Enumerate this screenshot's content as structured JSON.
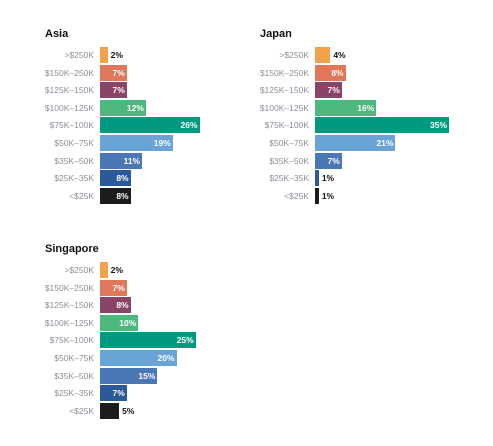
{
  "chart_data": [
    {
      "type": "bar",
      "orientation": "horizontal",
      "title": "Asia",
      "categories": [
        ">$250K",
        "$150K–250K",
        "$125K–150K",
        "$100K–125K",
        "$75K–100K",
        "$50K–75K",
        "$35K–50K",
        "$25K–35K",
        "<$25K"
      ],
      "values": [
        2,
        7,
        7,
        12,
        26,
        19,
        11,
        8,
        8
      ],
      "value_labels": [
        "2%",
        "7%",
        "7%",
        "12%",
        "26%",
        "19%",
        "11%",
        "8%",
        "8%"
      ],
      "xlim": [
        0,
        35
      ]
    },
    {
      "type": "bar",
      "orientation": "horizontal",
      "title": "Japan",
      "categories": [
        ">$250K",
        "$150K–250K",
        "$125K–150K",
        "$100K–125K",
        "$75K–100K",
        "$50K–75K",
        "$35K–50K",
        "$25K–35K",
        "<$25K"
      ],
      "values": [
        4,
        8,
        7,
        16,
        35,
        21,
        7,
        1,
        1
      ],
      "value_labels": [
        "4%",
        "8%",
        "7%",
        "16%",
        "35%",
        "21%",
        "7%",
        "1%",
        "1%"
      ],
      "xlim": [
        0,
        35
      ]
    },
    {
      "type": "bar",
      "orientation": "horizontal",
      "title": "Singapore",
      "categories": [
        ">$250K",
        "$150K–250K",
        "$125K–150K",
        "$100K–125K",
        "$75K–100K",
        "$50K–75K",
        "$35K–50K",
        "$25K–35K",
        "<$25K"
      ],
      "values": [
        2,
        7,
        8,
        10,
        25,
        20,
        15,
        7,
        5
      ],
      "value_labels": [
        "2%",
        "7%",
        "8%",
        "10%",
        "25%",
        "20%",
        "15%",
        "7%",
        "5%"
      ],
      "xlim": [
        0,
        35
      ]
    }
  ],
  "colors": [
    "#f2a24a",
    "#e0775a",
    "#8a4468",
    "#4db87d",
    "#009a80",
    "#6aa3d6",
    "#4a77b5",
    "#2a5a9c",
    "#1c1c1c"
  ],
  "label_colors": [
    "#111111",
    "#ffffff",
    "#ffffff",
    "#ffffff",
    "#ffffff",
    "#ffffff",
    "#ffffff",
    "#ffffff",
    "#ffffff"
  ]
}
